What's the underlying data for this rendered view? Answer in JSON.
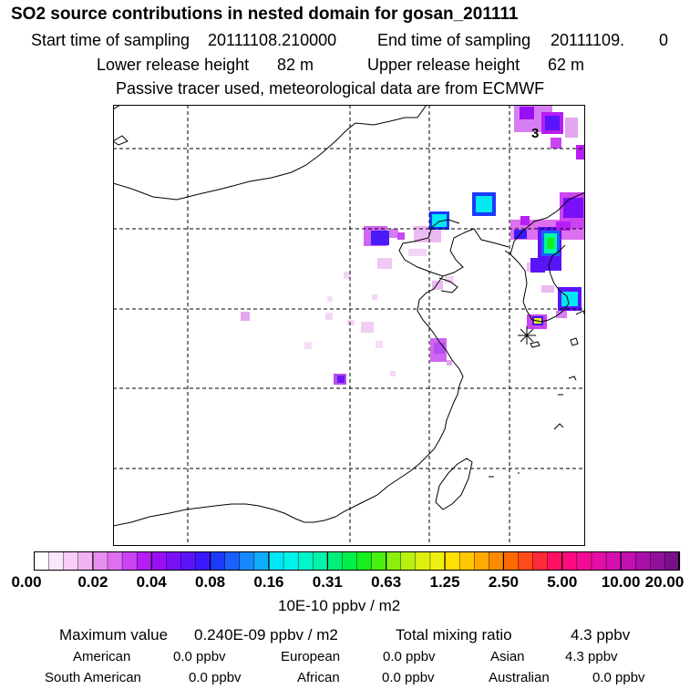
{
  "header": {
    "title": "SO2 source contributions in nested domain for gosan_201111",
    "start_label": "Start time of sampling",
    "start_value": "20111108.210000",
    "end_label": "End time of sampling",
    "end_value": "20111109.",
    "end_hour": "0",
    "lower_label": "Lower release height",
    "lower_value": "82 m",
    "upper_label": "Upper release height",
    "upper_value": "62 m",
    "note": "Passive tracer used, meteorological data are from ECMWF"
  },
  "map": {
    "contour_label": "3",
    "receptor": "gosan-star-marker"
  },
  "colorbar": {
    "unit": "10E-10 ppbv / m2",
    "ticks": [
      "0.00",
      "0.02",
      "0.04",
      "0.08",
      "0.16",
      "0.31",
      "0.63",
      "1.25",
      "2.50",
      "5.00",
      "10.00",
      "20.00"
    ],
    "colors": [
      "#ffffff",
      "#fbe6fb",
      "#f7ccf7",
      "#f2b3f2",
      "#e88ef0",
      "#dd6ff0",
      "#cc44f2",
      "#b71df5",
      "#9a10f5",
      "#7a10f7",
      "#5a14fa",
      "#3a19fc",
      "#1d3afc",
      "#1a60fc",
      "#1588fc",
      "#10aefa",
      "#00e6f5",
      "#00f2e8",
      "#00f5cc",
      "#00f5a8",
      "#00f07a",
      "#00ef4a",
      "#18ee1c",
      "#4cf010",
      "#8af010",
      "#b8f010",
      "#dcf010",
      "#f0f010",
      "#ffe000",
      "#ffc800",
      "#ffaa00",
      "#ff8c00",
      "#ff6a00",
      "#ff4a1a",
      "#ff2a3a",
      "#ff1060",
      "#ff0a80",
      "#f20c94",
      "#e40ea6",
      "#d410b0",
      "#c010b0",
      "#a810a8",
      "#90109c",
      "#781088"
    ]
  },
  "stats": {
    "max_label": "Maximum value",
    "max_value": "0.240E-09 ppbv / m2",
    "total_label": "Total mixing ratio",
    "total_value": "4.3 ppbv",
    "regions": [
      {
        "name": "American",
        "value": "0.0 ppbv"
      },
      {
        "name": "European",
        "value": "0.0 ppbv"
      },
      {
        "name": "Asian",
        "value": "4.3 ppbv"
      },
      {
        "name": "South American",
        "value": "0.0 ppbv"
      },
      {
        "name": "African",
        "value": "0.0 ppbv"
      },
      {
        "name": "Australian",
        "value": "0.0 ppbv"
      }
    ]
  }
}
